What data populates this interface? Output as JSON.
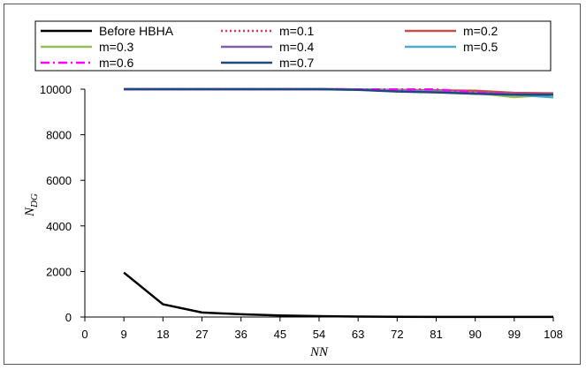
{
  "chart_data": {
    "type": "line",
    "title": "",
    "xlabel": "NN",
    "ylabel_main": "N",
    "ylabel_sub": "DG",
    "x": [
      9,
      18,
      27,
      36,
      45,
      54,
      63,
      72,
      81,
      90,
      99,
      108
    ],
    "xticks": [
      0,
      9,
      18,
      27,
      36,
      45,
      54,
      63,
      72,
      81,
      90,
      99,
      108
    ],
    "yticks": [
      0,
      2000,
      4000,
      6000,
      8000,
      10000
    ],
    "xlim": [
      0,
      108
    ],
    "ylim": [
      0,
      10000
    ],
    "legend_position": "top",
    "series": [
      {
        "name": "Before HBHA",
        "color": "#000000",
        "dash": "solid",
        "values": [
          1950,
          560,
          200,
          120,
          70,
          40,
          20,
          10,
          5,
          5,
          5,
          5
        ]
      },
      {
        "name": "m=0.1",
        "color": "#E8305A",
        "dash": "dot",
        "values": [
          10000,
          10000,
          10000,
          10000,
          10000,
          10000,
          9990,
          9960,
          9940,
          9880,
          9810,
          9800
        ]
      },
      {
        "name": "m=0.2",
        "color": "#C0504D",
        "dash": "solid",
        "values": [
          10000,
          10000,
          10000,
          10000,
          10000,
          10000,
          9990,
          9970,
          9950,
          9930,
          9840,
          9820
        ]
      },
      {
        "name": "m=0.3",
        "color": "#9BBB59",
        "dash": "solid",
        "values": [
          10000,
          10000,
          10000,
          10000,
          10000,
          10000,
          9990,
          9950,
          9900,
          9840,
          9650,
          9760
        ]
      },
      {
        "name": "m=0.4",
        "color": "#8064A2",
        "dash": "solid",
        "values": [
          10000,
          10000,
          10000,
          10000,
          10000,
          10000,
          9990,
          9940,
          9890,
          9820,
          9790,
          9770
        ]
      },
      {
        "name": "m=0.5",
        "color": "#4BACC6",
        "dash": "solid",
        "values": [
          10000,
          10000,
          10000,
          10000,
          10000,
          10000,
          9980,
          9930,
          9880,
          9800,
          9760,
          9640
        ]
      },
      {
        "name": "m=0.6",
        "color": "#FF00FF",
        "dash": "dashdot",
        "values": [
          10000,
          10000,
          10000,
          10000,
          10000,
          10000,
          9990,
          9990,
          9990,
          9860,
          9780,
          9760
        ]
      },
      {
        "name": "m=0.7",
        "color": "#1F497D",
        "dash": "solid",
        "values": [
          10000,
          10000,
          10000,
          10000,
          10000,
          10000,
          9970,
          9900,
          9860,
          9800,
          9760,
          9760
        ]
      }
    ]
  }
}
